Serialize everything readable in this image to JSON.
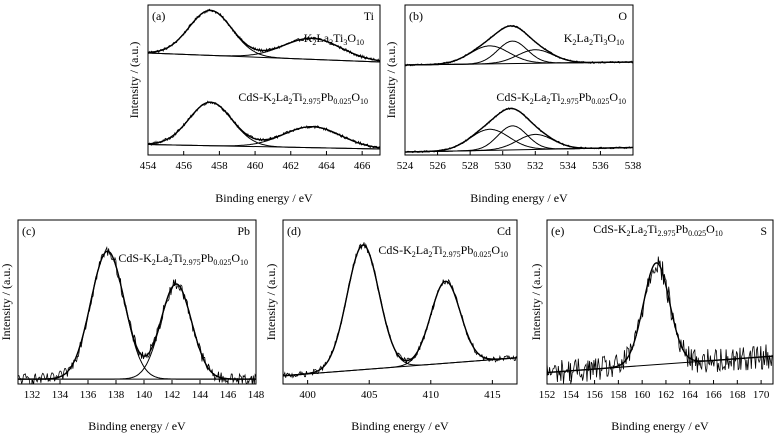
{
  "figure": {
    "ylabel_common": "Intensity / (a.u.)",
    "xlabel_common": "Binding energy / eV"
  },
  "chart_data": [
    {
      "panel_label": "(a)",
      "element": "Ti",
      "type": "line",
      "xlabel": "Binding energy / eV",
      "ylabel": "Intensity / (a.u.)",
      "xlim": [
        454,
        467
      ],
      "xticks": [
        454,
        456,
        458,
        460,
        462,
        464,
        466
      ],
      "series": [
        {
          "label_parts": [
            [
              "K",
              ""
            ],
            [
              "2",
              "sub"
            ],
            [
              "La",
              ""
            ],
            [
              "2",
              "sub"
            ],
            [
              "Ti",
              ""
            ],
            [
              "3",
              "sub"
            ],
            [
              "O",
              ""
            ],
            [
              "10",
              "sub"
            ]
          ],
          "baseline": [
            0.68,
            0.62
          ],
          "peaks": [
            {
              "x": 457.5,
              "h": 0.3,
              "w": 1.2
            },
            {
              "x": 463.2,
              "h": 0.14,
              "w": 1.6
            }
          ]
        },
        {
          "label_parts": [
            [
              "CdS-K",
              ""
            ],
            [
              "2",
              "sub"
            ],
            [
              "La",
              ""
            ],
            [
              "2",
              "sub"
            ],
            [
              "Ti",
              ""
            ],
            [
              "2.975",
              "sub"
            ],
            [
              "Pb",
              ""
            ],
            [
              "0.025",
              "sub"
            ],
            [
              "O",
              ""
            ],
            [
              "10",
              "sub"
            ]
          ],
          "baseline": [
            0.07,
            0.04
          ],
          "peaks": [
            {
              "x": 457.5,
              "h": 0.29,
              "w": 1.2
            },
            {
              "x": 463.2,
              "h": 0.14,
              "w": 1.6
            }
          ]
        }
      ]
    },
    {
      "panel_label": "(b)",
      "element": "O",
      "type": "line",
      "xlabel": "Binding energy / eV",
      "ylabel": "Intensity / (a.u.)",
      "xlim": [
        524,
        538
      ],
      "xticks": [
        524,
        526,
        528,
        530,
        532,
        534,
        536,
        538
      ],
      "series": [
        {
          "label_parts": [
            [
              "K",
              ""
            ],
            [
              "2",
              "sub"
            ],
            [
              "La",
              ""
            ],
            [
              "2",
              "sub"
            ],
            [
              "Ti",
              ""
            ],
            [
              "3",
              "sub"
            ],
            [
              "O",
              ""
            ],
            [
              "10",
              "sub"
            ]
          ],
          "baseline": [
            0.6,
            0.62
          ],
          "peaks": [
            {
              "x": 529.2,
              "h": 0.12,
              "w": 1.2
            },
            {
              "x": 530.6,
              "h": 0.15,
              "w": 0.9
            },
            {
              "x": 532.0,
              "h": 0.09,
              "w": 1.1
            }
          ]
        },
        {
          "label_parts": [
            [
              "CdS-K",
              ""
            ],
            [
              "2",
              "sub"
            ],
            [
              "La",
              ""
            ],
            [
              "2",
              "sub"
            ],
            [
              "Ti",
              ""
            ],
            [
              "2.975",
              "sub"
            ],
            [
              "Pb",
              ""
            ],
            [
              "0.025",
              "sub"
            ],
            [
              "O",
              ""
            ],
            [
              "10",
              "sub"
            ]
          ],
          "baseline": [
            0.02,
            0.05
          ],
          "peaks": [
            {
              "x": 529.2,
              "h": 0.14,
              "w": 1.2
            },
            {
              "x": 530.6,
              "h": 0.16,
              "w": 0.9
            },
            {
              "x": 532.0,
              "h": 0.1,
              "w": 1.1
            }
          ]
        }
      ]
    },
    {
      "panel_label": "(c)",
      "element": "Pb",
      "type": "line",
      "xlabel": "Binding energy / eV",
      "ylabel": "Intensity / (a.u.)",
      "xlim": [
        131,
        148
      ],
      "xticks": [
        132,
        134,
        136,
        138,
        140,
        142,
        144,
        146,
        148
      ],
      "series": [
        {
          "label_parts": [
            [
              "CdS-K",
              ""
            ],
            [
              "2",
              "sub"
            ],
            [
              "La",
              ""
            ],
            [
              "2",
              "sub"
            ],
            [
              "Ti",
              ""
            ],
            [
              "2.975",
              "sub"
            ],
            [
              "Pb",
              ""
            ],
            [
              "0.025",
              "sub"
            ],
            [
              "O",
              ""
            ],
            [
              "10",
              "sub"
            ]
          ],
          "label_position": "top-right",
          "baseline": [
            0.03,
            0.03
          ],
          "peaks": [
            {
              "x": 137.4,
              "h": 0.78,
              "w": 1.2
            },
            {
              "x": 142.3,
              "h": 0.58,
              "w": 1.1
            }
          ]
        }
      ]
    },
    {
      "panel_label": "(d)",
      "element": "Cd",
      "type": "line",
      "xlabel": "Binding energy / eV",
      "ylabel": "Intensity / (a.u.)",
      "xlim": [
        398,
        417
      ],
      "xticks": [
        400,
        405,
        410,
        415
      ],
      "series": [
        {
          "label_parts": [
            [
              "CdS-K",
              ""
            ],
            [
              "2",
              "sub"
            ],
            [
              "La",
              ""
            ],
            [
              "2",
              "sub"
            ],
            [
              "Ti",
              ""
            ],
            [
              "2.975",
              "sub"
            ],
            [
              "Pb",
              ""
            ],
            [
              "0.025",
              "sub"
            ],
            [
              "O",
              ""
            ],
            [
              "10",
              "sub"
            ]
          ],
          "label_position": "top-right",
          "baseline": [
            0.05,
            0.16
          ],
          "peaks": [
            {
              "x": 404.5,
              "h": 0.76,
              "w": 1.3
            },
            {
              "x": 411.2,
              "h": 0.5,
              "w": 1.2
            }
          ]
        }
      ]
    },
    {
      "panel_label": "(e)",
      "element": "S",
      "type": "line",
      "xlabel": "Binding energy / eV",
      "ylabel": "Intensity / (a.u.)",
      "xlim": [
        152,
        171
      ],
      "xticks": [
        152,
        154,
        156,
        158,
        160,
        162,
        164,
        166,
        168,
        170
      ],
      "series": [
        {
          "label_parts": [
            [
              "CdS-K",
              ""
            ],
            [
              "2",
              "sub"
            ],
            [
              "La",
              ""
            ],
            [
              "2",
              "sub"
            ],
            [
              "Ti",
              ""
            ],
            [
              "2.975",
              "sub"
            ],
            [
              "Pb",
              ""
            ],
            [
              "0.025",
              "sub"
            ],
            [
              "O",
              ""
            ],
            [
              "10",
              "sub"
            ]
          ],
          "label_position": "top",
          "baseline": [
            0.07,
            0.17
          ],
          "peaks": [
            {
              "x": 161.2,
              "h": 0.62,
              "w": 1.1
            }
          ]
        }
      ]
    }
  ]
}
